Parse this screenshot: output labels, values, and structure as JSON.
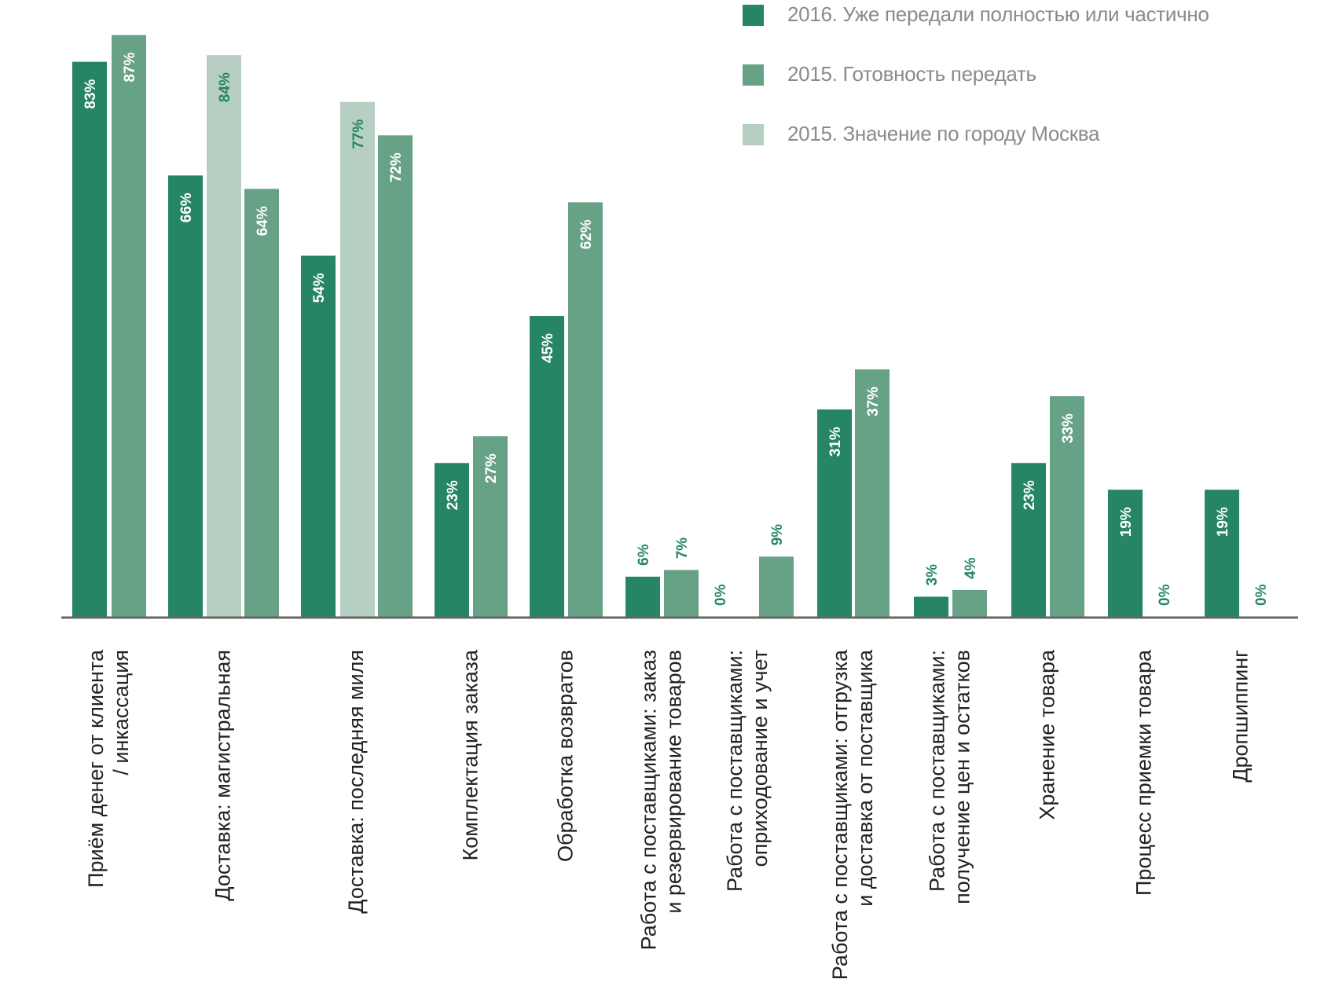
{
  "chart_data": {
    "type": "bar",
    "title": "",
    "xlabel": "",
    "ylabel": "",
    "ylim": [
      0,
      100
    ],
    "grid": false,
    "legend_position": "top-right",
    "value_suffix": "%",
    "categories": [
      [
        "Приём денег от клиента",
        "/ инкассация"
      ],
      [
        "Доставка: магистральная"
      ],
      [
        "Доставка: последняя миля"
      ],
      [
        "Комплектация заказа"
      ],
      [
        "Обработка возвратов"
      ],
      [
        "Работа с поставщиками: заказ",
        "и резервирование товаров"
      ],
      [
        "Работа с поставщиками:",
        "оприходование и учет"
      ],
      [
        "Работа с поставщиками: отгрузка",
        "и доставка от поставщика"
      ],
      [
        "Работа с поставщиками:",
        "получение цен и остатков"
      ],
      [
        "Хранение товара"
      ],
      [
        "Процесс приемки товара"
      ],
      [
        "Дропшиппинг"
      ]
    ],
    "series": [
      {
        "name": "2016. Уже передали полностью или частично",
        "color": "#258565",
        "values": [
          83,
          66,
          54,
          23,
          45,
          6,
          0,
          31,
          3,
          23,
          19,
          19
        ]
      },
      {
        "name": "2015. Готовность передать",
        "color": "#68a286",
        "values": [
          87,
          64,
          72,
          27,
          62,
          7,
          9,
          37,
          4,
          33,
          0,
          0
        ]
      },
      {
        "name": "2015. Значение по городу Москва",
        "color": "#b6cfc2",
        "values": [
          null,
          84,
          77,
          null,
          null,
          null,
          null,
          null,
          null,
          null,
          null,
          null
        ]
      }
    ],
    "bar_order": [
      [
        "2016",
        "2015"
      ],
      [
        "2016",
        "moscow",
        "2015"
      ],
      [
        "2016",
        "moscow",
        "2015"
      ],
      [
        "2016",
        "2015"
      ],
      [
        "2016",
        "2015"
      ],
      [
        "2016",
        "2015"
      ],
      [
        "2016",
        "2015"
      ],
      [
        "2016",
        "2015"
      ],
      [
        "2016",
        "2015"
      ],
      [
        "2016",
        "2015"
      ],
      [
        "2016",
        "2015"
      ],
      [
        "2016",
        "2015"
      ]
    ],
    "label_color_inside": "#ffffff",
    "label_color_outside": "#258565",
    "axis_color": "#666666",
    "category_label_color": "#222222",
    "legend_text_color": "#8a8a8a"
  }
}
